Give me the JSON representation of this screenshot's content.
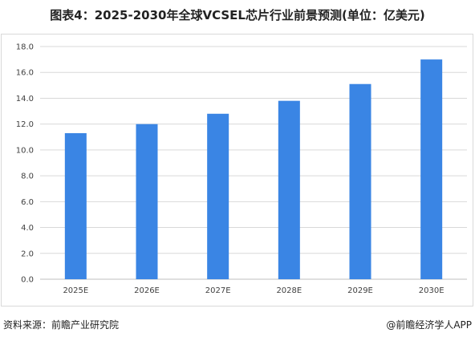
{
  "title": "图表4：2025-2030年全球VCSEL芯片行业前景预测(单位：亿美元)",
  "footer": {
    "source": "资料来源：前瞻产业研究院",
    "brand": "@前瞻经济学人APP"
  },
  "colors": {
    "bar": "#3a85e4",
    "grid": "#d9d9d9",
    "axis": "#bfbfbf"
  },
  "chart_data": {
    "type": "bar",
    "title": "图表4：2025-2030年全球VCSEL芯片行业前景预测(单位：亿美元)",
    "xlabel": "",
    "ylabel": "",
    "categories": [
      "2025E",
      "2026E",
      "2027E",
      "2028E",
      "2029E",
      "2030E"
    ],
    "values": [
      11.3,
      12.0,
      12.8,
      13.8,
      15.1,
      17.0
    ],
    "ylim": [
      0,
      18
    ],
    "yticks": [
      "0.0",
      "2.0",
      "4.0",
      "6.0",
      "8.0",
      "10.0",
      "12.0",
      "14.0",
      "16.0",
      "18.0"
    ],
    "grid": true,
    "legend": "none"
  }
}
